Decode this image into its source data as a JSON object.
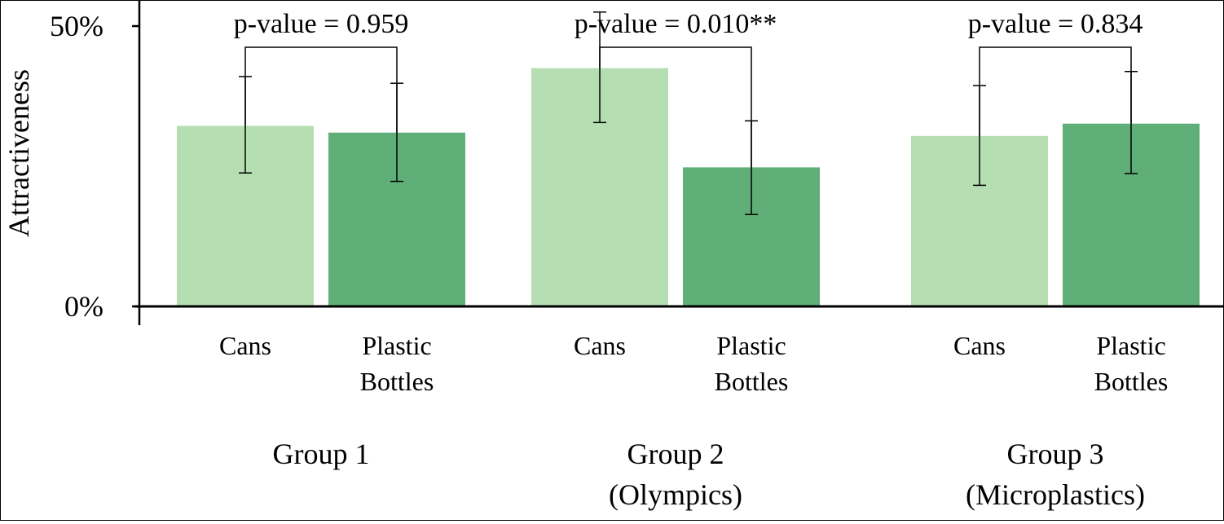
{
  "chart_data": {
    "type": "bar",
    "ylabel": "Attractiveness",
    "ylim": [
      0,
      50
    ],
    "yticks": [
      {
        "value": 0,
        "label": "0%"
      },
      {
        "value": 50,
        "label": "50%"
      }
    ],
    "colors": {
      "Cans": "#b5dfb2",
      "Plastic Bottles": "#60af78"
    },
    "groups": [
      {
        "label_lines": [
          "Group 1"
        ],
        "p_value_label": "p-value = 0.959",
        "bars": [
          {
            "category": "Cans",
            "label_lines": [
              "Cans"
            ],
            "value": 32.2,
            "err_low": 23.8,
            "err_high": 41.0
          },
          {
            "category": "Plastic Bottles",
            "label_lines": [
              "Plastic",
              "Bottles"
            ],
            "value": 31.0,
            "err_low": 22.3,
            "err_high": 39.8
          }
        ]
      },
      {
        "label_lines": [
          "Group 2",
          "(Olympics)"
        ],
        "p_value_label": "p-value = 0.010**",
        "bars": [
          {
            "category": "Cans",
            "label_lines": [
              "Cans"
            ],
            "value": 42.5,
            "err_low": 32.8,
            "err_high": 52.5
          },
          {
            "category": "Plastic Bottles",
            "label_lines": [
              "Plastic",
              "Bottles"
            ],
            "value": 24.8,
            "err_low": 16.4,
            "err_high": 33.1
          }
        ]
      },
      {
        "label_lines": [
          "Group 3",
          "(Microplastics)"
        ],
        "p_value_label": "p-value = 0.834",
        "bars": [
          {
            "category": "Cans",
            "label_lines": [
              "Cans"
            ],
            "value": 30.4,
            "err_low": 21.6,
            "err_high": 39.4
          },
          {
            "category": "Plastic Bottles",
            "label_lines": [
              "Plastic",
              "Bottles"
            ],
            "value": 32.6,
            "err_low": 23.7,
            "err_high": 41.9
          }
        ]
      }
    ]
  }
}
